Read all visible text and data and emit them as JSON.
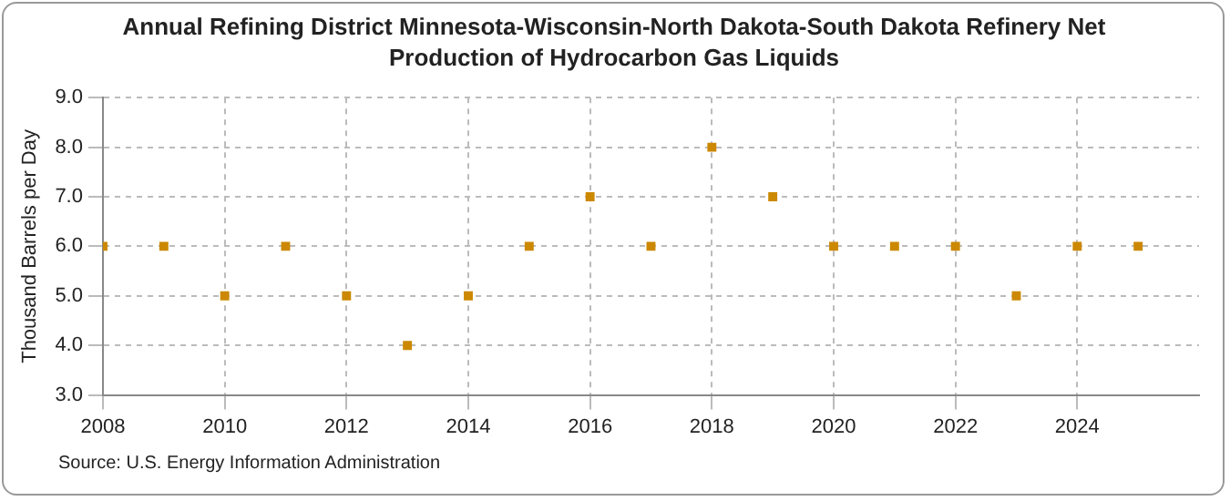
{
  "chart_data": {
    "type": "scatter",
    "title": "Annual Refining District Minnesota-Wisconsin-North Dakota-South Dakota Refinery Net Production of Hydrocarbon Gas Liquids",
    "ylabel": "Thousand Barrels per Day",
    "x": [
      2008,
      2009,
      2010,
      2011,
      2012,
      2013,
      2014,
      2015,
      2016,
      2017,
      2018,
      2019,
      2020,
      2021,
      2022,
      2023,
      2024,
      2025
    ],
    "series": [
      {
        "color": "#cc8800",
        "values": [
          6,
          6,
          5,
          6,
          5,
          4,
          5,
          6,
          7,
          6,
          8,
          7,
          6,
          6,
          6,
          5,
          6,
          6
        ]
      }
    ],
    "xlim": [
      2008,
      2026
    ],
    "xticks": [
      2008,
      2010,
      2012,
      2014,
      2016,
      2018,
      2020,
      2022,
      2024
    ],
    "ylim": [
      3,
      9
    ],
    "yticks": [
      {
        "value": 3,
        "label": "3.0"
      },
      {
        "value": 4,
        "label": "4.0"
      },
      {
        "value": 5,
        "label": "5.0"
      },
      {
        "value": 6,
        "label": "6.0"
      },
      {
        "value": 7,
        "label": "7.0"
      },
      {
        "value": 8,
        "label": "8.0"
      },
      {
        "value": 9,
        "label": "9.0"
      }
    ],
    "grid": true,
    "marker": "square",
    "legend": false,
    "annotations": [
      "Source: U.S. Energy Information Administration"
    ]
  }
}
